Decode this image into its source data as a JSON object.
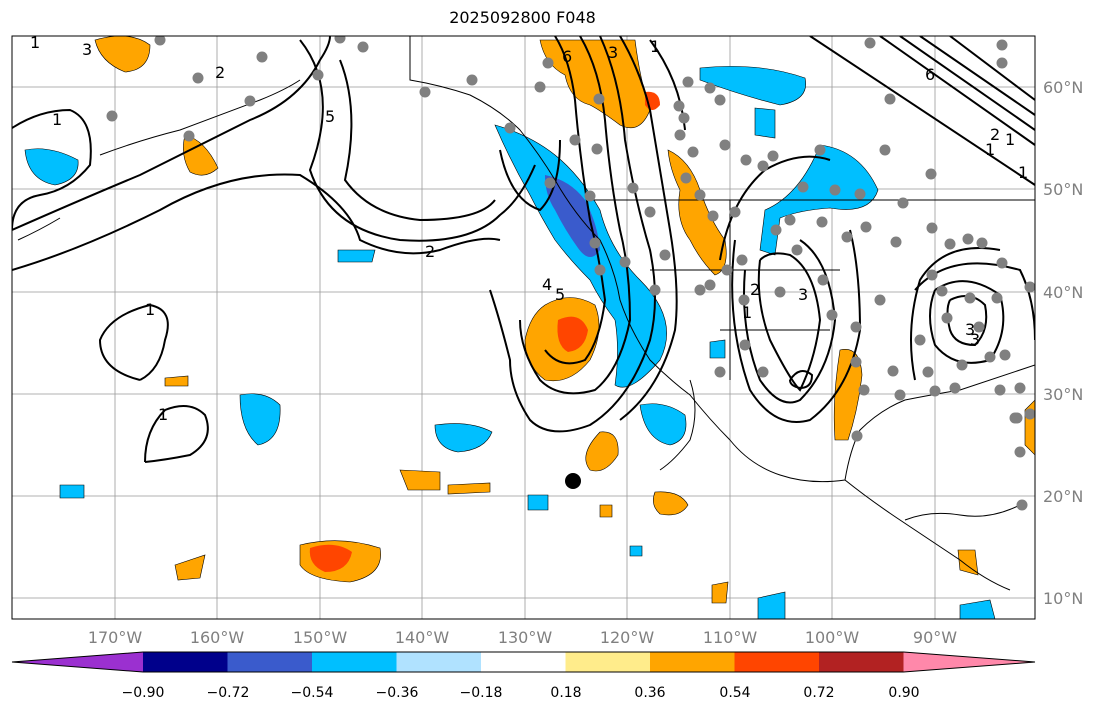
{
  "title": "2025092800 F048",
  "map": {
    "projection": "PlateCarree",
    "lon_range": [
      -180,
      -80
    ],
    "lat_range": [
      8,
      65
    ],
    "gridlines": true,
    "lon_labels": [
      "170°W",
      "160°W",
      "150°W",
      "140°W",
      "130°W",
      "120°W",
      "110°W",
      "100°W",
      "90°W"
    ],
    "lat_labels": [
      "60°N",
      "50°N",
      "40°N",
      "30°N",
      "20°N",
      "10°N"
    ],
    "contour_labels": [
      "1",
      "1",
      "1",
      "1",
      "2",
      "2",
      "3",
      "3",
      "4",
      "5",
      "5",
      "6",
      "6",
      "1",
      "1",
      "2",
      "3",
      "1",
      "3",
      "2",
      "1",
      "3",
      "1"
    ],
    "marker": "black-dot",
    "station_marker": "gray-dot"
  },
  "colorbar": {
    "ticks": [
      "−0.90",
      "−0.72",
      "−0.54",
      "−0.36",
      "−0.18",
      "0.18",
      "0.36",
      "0.54",
      "0.72",
      "0.90"
    ],
    "colors": [
      "#9b30d0",
      "#00008b",
      "#3a5bcc",
      "#00bfff",
      "#b0e2ff",
      "#ffffff",
      "#ffec8b",
      "#ffa500",
      "#ff4500",
      "#b22222",
      "#ff88aa"
    ],
    "extend": "both"
  }
}
